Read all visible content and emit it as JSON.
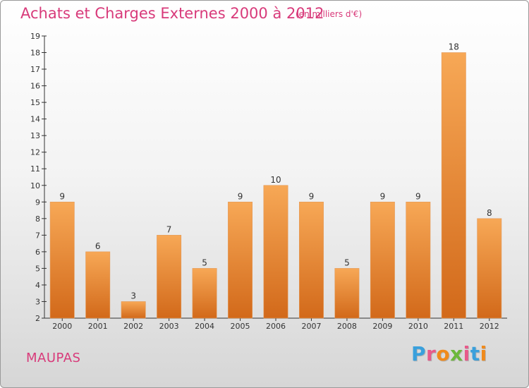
{
  "header": {
    "title": "Achats et Charges Externes 2000 à 2012",
    "subtitle": "(en milliers d'€)"
  },
  "footer": {
    "commune": "MAUPAS",
    "brand": "Proxiti",
    "brand_colors": [
      "#3aa0dc",
      "#e85a8a",
      "#f08a1c",
      "#6cb83a",
      "#e85a8a",
      "#3aa0dc",
      "#f08a1c"
    ]
  },
  "colors": {
    "bar_light": "#f7a856",
    "bar_dark": "#d2691a",
    "axis": "#333333",
    "text_accent": "#d83a7a"
  },
  "chart_data": {
    "type": "bar",
    "title": "Achats et Charges Externes 2000 à 2012",
    "subtitle": "(en milliers d'€)",
    "categories": [
      "2000",
      "2001",
      "2002",
      "2003",
      "2004",
      "2005",
      "2006",
      "2007",
      "2008",
      "2009",
      "2010",
      "2011",
      "2012"
    ],
    "values": [
      9,
      6,
      3,
      7,
      5,
      9,
      10,
      9,
      5,
      9,
      9,
      18,
      8
    ],
    "ylim": [
      2,
      19
    ],
    "yticks": [
      2,
      3,
      4,
      5,
      6,
      7,
      8,
      9,
      10,
      11,
      12,
      13,
      14,
      15,
      16,
      17,
      18,
      19
    ],
    "grid": false,
    "data_labels": true
  }
}
